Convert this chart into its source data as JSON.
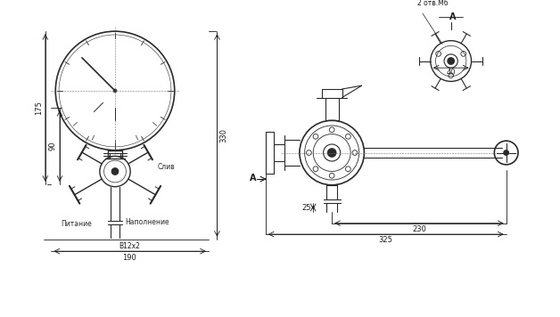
{
  "title": "",
  "bg_color": "#ffffff",
  "drawing_color": "#2a2a2a",
  "dim_color": "#1a1a1a",
  "fig_width": 6.28,
  "fig_height": 3.56,
  "dpi": 100,
  "annotations": {
    "dim_330": "330",
    "dim_175": "175",
    "dim_90": "90",
    "dim_190": "190",
    "dim_Phi": "В12х2",
    "label_pitanie": "Питание",
    "label_napolnenie": "Наполнение",
    "label_sliv": "Слив",
    "dim_25": "25",
    "dim_230": "230",
    "dim_325": "325",
    "dim_40": "40",
    "label_A": "A",
    "label_2otv": "2 отв.M6"
  }
}
